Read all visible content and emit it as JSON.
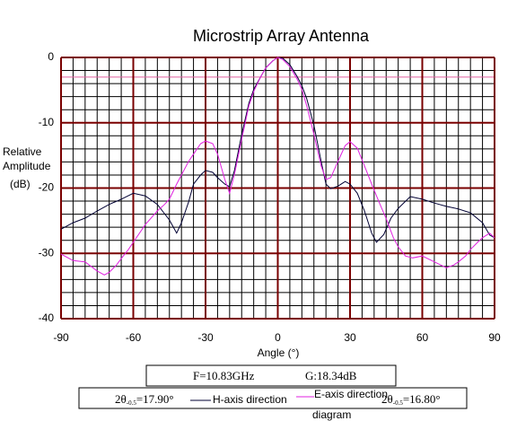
{
  "chart_data": {
    "type": "line",
    "title": "Microstrip Array Antenna",
    "ylabel": [
      "Relative",
      "Amplitude",
      "(dB)"
    ],
    "xlabel": "Angle (°)",
    "xlim": [
      -90,
      90
    ],
    "xticks": [
      -90,
      -60,
      -30,
      0,
      30,
      60,
      90
    ],
    "ylim": [
      -40,
      0
    ],
    "yticks": [
      -40,
      -30,
      -20,
      -10,
      0
    ],
    "minor_xticks": [
      -85,
      -80,
      -75,
      -70,
      -65,
      -55,
      -50,
      -45,
      -40,
      -35,
      -25,
      -20,
      -15,
      -10,
      -5,
      5,
      10,
      15,
      20,
      25,
      35,
      40,
      45,
      50,
      55,
      65,
      70,
      75,
      80,
      85
    ],
    "minor_yticks": [
      -2,
      -4,
      -6,
      -8,
      -12,
      -14,
      -16,
      -18,
      -22,
      -24,
      -26,
      -28,
      -32,
      -34,
      -36,
      -38
    ],
    "grid": true,
    "grid_color": "#7a0000",
    "minor_grid_color": "#000000",
    "reference_line": {
      "value": -3,
      "color": "#e060a0"
    },
    "annotations": {
      "frequency": "F=10.83GHz",
      "gain": "G:18.34dB",
      "h_beamwidth": {
        "prefix": "2θ",
        "sub": "-0.5",
        "rest": "=17.90°"
      },
      "e_beamwidth": {
        "prefix": "2θ",
        "sub": "-0.5",
        "rest": "=16.80°"
      },
      "extra": "diagram"
    },
    "series": [
      {
        "name": "H-axis direction",
        "color": "#000033",
        "x": [
          -90,
          -85,
          -80,
          -75,
          -70,
          -65,
          -60,
          -55,
          -50,
          -45,
          -42,
          -40,
          -37,
          -35,
          -32,
          -30,
          -27,
          -25,
          -22,
          -20,
          -18,
          -15,
          -12,
          -10,
          -7,
          -5,
          -2,
          0,
          2,
          5,
          8,
          10,
          12,
          15,
          18,
          20,
          22,
          25,
          28,
          30,
          33,
          36,
          39,
          41,
          44,
          47,
          50,
          55,
          60,
          65,
          70,
          75,
          80,
          85,
          88,
          90
        ],
        "values": [
          -26.3,
          -25.3,
          -24.6,
          -23.5,
          -22.5,
          -21.7,
          -20.8,
          -21.2,
          -22.5,
          -24.9,
          -26.9,
          -25.3,
          -22.1,
          -19.4,
          -18.0,
          -17.3,
          -17.6,
          -18.4,
          -19.4,
          -19.8,
          -17.3,
          -11.8,
          -7.0,
          -4.9,
          -2.9,
          -1.6,
          -0.5,
          0,
          -0.1,
          -1.1,
          -2.9,
          -4.3,
          -6.3,
          -10.4,
          -15.9,
          -19.4,
          -20.1,
          -19.7,
          -19.0,
          -19.4,
          -20.8,
          -23.5,
          -26.9,
          -28.3,
          -27.1,
          -24.6,
          -23.1,
          -21.3,
          -21.7,
          -22.3,
          -22.8,
          -23.2,
          -23.8,
          -25.3,
          -27.2,
          -27.6
        ]
      },
      {
        "name": "E-axis direction",
        "color": "#e020e0",
        "x": [
          -90,
          -85,
          -80,
          -75,
          -72,
          -70,
          -67,
          -65,
          -62,
          -60,
          -55,
          -50,
          -47,
          -45,
          -42,
          -40,
          -37,
          -35,
          -32,
          -30,
          -27,
          -25,
          -22,
          -20,
          -18,
          -15,
          -12,
          -10,
          -7,
          -5,
          -2,
          0,
          2,
          5,
          8,
          10,
          12,
          15,
          18,
          20,
          22,
          25,
          28,
          30,
          33,
          36,
          39,
          42,
          45,
          48,
          50,
          53,
          56,
          60,
          65,
          70,
          73,
          75,
          78,
          80,
          83,
          85,
          88,
          90
        ],
        "values": [
          -30.1,
          -31.1,
          -31.3,
          -32.7,
          -33.3,
          -32.9,
          -31.8,
          -30.8,
          -29.4,
          -28.3,
          -25.6,
          -23.5,
          -22.5,
          -21.7,
          -19.4,
          -18.0,
          -15.9,
          -14.8,
          -13.2,
          -12.8,
          -13.2,
          -14.8,
          -18.7,
          -20.8,
          -17.9,
          -12.5,
          -7.4,
          -5.2,
          -2.9,
          -1.6,
          -0.5,
          0,
          -0.3,
          -1.4,
          -3.3,
          -4.9,
          -7.4,
          -11.8,
          -16.6,
          -18.7,
          -18.4,
          -15.9,
          -13.5,
          -12.9,
          -13.9,
          -16.6,
          -19.4,
          -22.1,
          -24.7,
          -27.6,
          -29.0,
          -30.4,
          -30.7,
          -30.4,
          -31.3,
          -32.2,
          -31.8,
          -31.3,
          -30.4,
          -29.4,
          -28.3,
          -27.6,
          -26.9,
          -27.6
        ]
      }
    ]
  }
}
